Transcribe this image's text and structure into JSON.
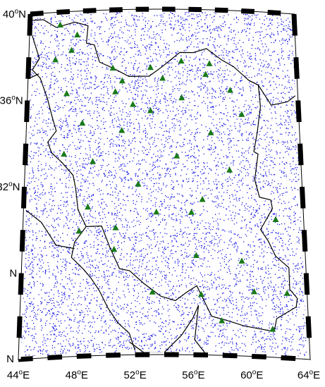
{
  "map": {
    "lat_labels": [
      {
        "num": "40",
        "hemi": "N",
        "lat": 40
      },
      {
        "num": "36",
        "hemi": "N",
        "lat": 36
      },
      {
        "num": "32",
        "hemi": "N",
        "lat": 32
      },
      {
        "num": "",
        "hemi": "N",
        "lat": 28
      },
      {
        "num": "",
        "hemi": "N",
        "lat": 24
      }
    ],
    "lon_labels": [
      {
        "num": "44",
        "hemi": "E",
        "lon": 44
      },
      {
        "num": "48",
        "hemi": "E",
        "lon": 48
      },
      {
        "num": "52",
        "hemi": "E",
        "lon": 52
      },
      {
        "num": "56",
        "hemi": "E",
        "lon": 56
      },
      {
        "num": "60",
        "hemi": "E",
        "lon": 60
      },
      {
        "num": "64",
        "hemi": "E",
        "lon": 64
      }
    ],
    "extent": {
      "lon_min": 44,
      "lon_max": 64,
      "lat_min": 24,
      "lat_max": 40
    },
    "colors": {
      "scatter_points": "#1f1fe6",
      "stations": "#1a7a1a",
      "border": "#000000",
      "frame": "#000000"
    },
    "stations": [
      {
        "lon": 46.3,
        "lat": 39.4
      },
      {
        "lon": 47.6,
        "lat": 38.9
      },
      {
        "lon": 46.0,
        "lat": 37.8
      },
      {
        "lon": 47.2,
        "lat": 38.2
      },
      {
        "lon": 50.3,
        "lat": 37.3
      },
      {
        "lon": 51.0,
        "lat": 36.7
      },
      {
        "lon": 53.1,
        "lat": 37.3
      },
      {
        "lon": 54.0,
        "lat": 36.8
      },
      {
        "lon": 55.4,
        "lat": 37.6
      },
      {
        "lon": 57.5,
        "lat": 37.5
      },
      {
        "lon": 57.2,
        "lat": 37.0
      },
      {
        "lon": 59.0,
        "lat": 36.3
      },
      {
        "lon": 46.9,
        "lat": 36.2
      },
      {
        "lon": 50.5,
        "lat": 36.2
      },
      {
        "lon": 51.8,
        "lat": 35.6
      },
      {
        "lon": 53.1,
        "lat": 35.3
      },
      {
        "lon": 55.4,
        "lat": 35.9
      },
      {
        "lon": 59.8,
        "lat": 35.2
      },
      {
        "lon": 48.1,
        "lat": 34.8
      },
      {
        "lon": 51.0,
        "lat": 34.4
      },
      {
        "lon": 57.5,
        "lat": 34.3
      },
      {
        "lon": 46.8,
        "lat": 33.4
      },
      {
        "lon": 48.9,
        "lat": 33.0
      },
      {
        "lon": 55.0,
        "lat": 33.2
      },
      {
        "lon": 58.8,
        "lat": 32.6
      },
      {
        "lon": 52.2,
        "lat": 31.9
      },
      {
        "lon": 56.8,
        "lat": 31.2
      },
      {
        "lon": 48.6,
        "lat": 30.9
      },
      {
        "lon": 53.5,
        "lat": 30.6
      },
      {
        "lon": 56.0,
        "lat": 30.6
      },
      {
        "lon": 62.0,
        "lat": 30.4
      },
      {
        "lon": 48.0,
        "lat": 29.8
      },
      {
        "lon": 50.6,
        "lat": 29.9
      },
      {
        "lon": 50.5,
        "lat": 28.9
      },
      {
        "lon": 56.3,
        "lat": 28.6
      },
      {
        "lon": 59.5,
        "lat": 28.4
      },
      {
        "lon": 53.2,
        "lat": 26.9
      },
      {
        "lon": 56.6,
        "lat": 26.8
      },
      {
        "lon": 60.3,
        "lat": 27.0
      },
      {
        "lon": 62.6,
        "lat": 27.0
      },
      {
        "lon": 58.0,
        "lat": 25.6
      },
      {
        "lon": 61.5,
        "lat": 25.3
      }
    ]
  }
}
